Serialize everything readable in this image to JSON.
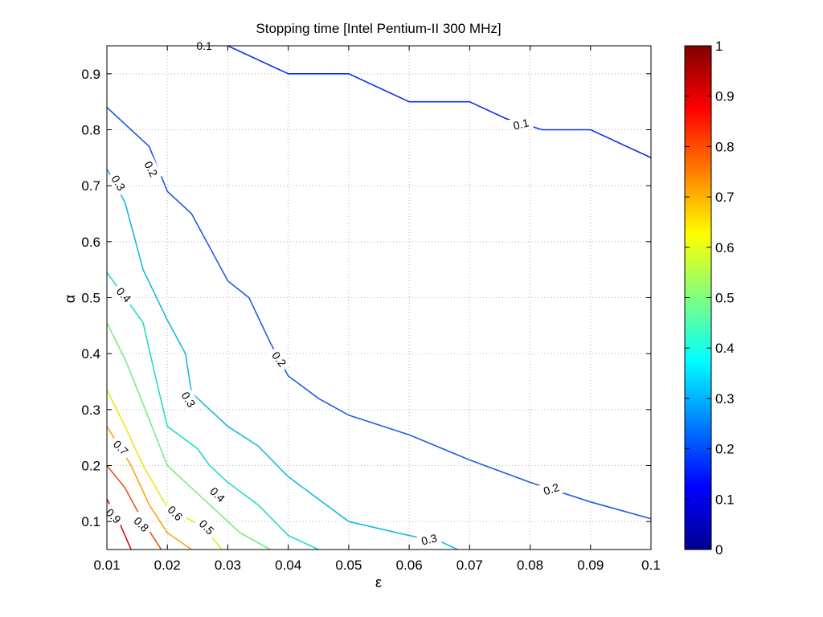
{
  "chart_data": {
    "type": "contour",
    "title": "Stopping time [Intel Pentium-II 300 MHz]",
    "xlabel": "ε",
    "ylabel": "α",
    "xlim": [
      0.01,
      0.1
    ],
    "ylim": [
      0.05,
      0.95
    ],
    "xticks": [
      "0.01",
      "0.02",
      "0.03",
      "0.04",
      "0.05",
      "0.06",
      "0.07",
      "0.08",
      "0.09",
      "0.1"
    ],
    "yticks": [
      "0.1",
      "0.2",
      "0.3",
      "0.4",
      "0.5",
      "0.6",
      "0.7",
      "0.8",
      "0.9"
    ],
    "grid": true,
    "colorbar": {
      "range": [
        0,
        1
      ],
      "ticks": [
        "0",
        "0.1",
        "0.2",
        "0.3",
        "0.4",
        "0.5",
        "0.6",
        "0.7",
        "0.8",
        "0.9",
        "1"
      ]
    },
    "series": [
      {
        "level": 0.1,
        "color": "#0a2ef0",
        "points": [
          [
            0.03,
            0.95
          ],
          [
            0.04,
            0.9
          ],
          [
            0.05,
            0.9
          ],
          [
            0.06,
            0.85
          ],
          [
            0.07,
            0.85
          ],
          [
            0.076,
            0.82
          ],
          [
            0.082,
            0.8
          ],
          [
            0.09,
            0.8
          ],
          [
            0.1,
            0.75
          ]
        ]
      },
      {
        "level": 0.2,
        "color": "#1e5ce8",
        "points": [
          [
            0.01,
            0.84
          ],
          [
            0.014,
            0.8
          ],
          [
            0.017,
            0.77
          ],
          [
            0.02,
            0.69
          ],
          [
            0.024,
            0.65
          ],
          [
            0.027,
            0.59
          ],
          [
            0.03,
            0.53
          ],
          [
            0.0335,
            0.5
          ],
          [
            0.037,
            0.42
          ],
          [
            0.04,
            0.36
          ],
          [
            0.045,
            0.32
          ],
          [
            0.05,
            0.29
          ],
          [
            0.06,
            0.255
          ],
          [
            0.07,
            0.21
          ],
          [
            0.08,
            0.17
          ],
          [
            0.09,
            0.135
          ],
          [
            0.1,
            0.105
          ]
        ]
      },
      {
        "level": 0.3,
        "color": "#18b8e0",
        "points": [
          [
            0.01,
            0.73
          ],
          [
            0.013,
            0.67
          ],
          [
            0.016,
            0.55
          ],
          [
            0.02,
            0.46
          ],
          [
            0.023,
            0.4
          ],
          [
            0.024,
            0.33
          ],
          [
            0.027,
            0.3
          ],
          [
            0.03,
            0.27
          ],
          [
            0.035,
            0.235
          ],
          [
            0.04,
            0.18
          ],
          [
            0.045,
            0.14
          ],
          [
            0.05,
            0.1
          ],
          [
            0.06,
            0.075
          ],
          [
            0.065,
            0.065
          ],
          [
            0.068,
            0.05
          ]
        ]
      },
      {
        "level": 0.4,
        "color": "#22dcc8",
        "points": [
          [
            0.01,
            0.545
          ],
          [
            0.016,
            0.455
          ],
          [
            0.018,
            0.36
          ],
          [
            0.02,
            0.27
          ],
          [
            0.025,
            0.23
          ],
          [
            0.027,
            0.2
          ],
          [
            0.03,
            0.17
          ],
          [
            0.035,
            0.13
          ],
          [
            0.04,
            0.075
          ],
          [
            0.045,
            0.05
          ]
        ]
      },
      {
        "level": 0.5,
        "color": "#77ee80",
        "points": [
          [
            0.01,
            0.455
          ],
          [
            0.013,
            0.39
          ],
          [
            0.016,
            0.31
          ],
          [
            0.02,
            0.2
          ],
          [
            0.025,
            0.15
          ],
          [
            0.028,
            0.12
          ],
          [
            0.032,
            0.08
          ],
          [
            0.037,
            0.05
          ]
        ]
      },
      {
        "level": 0.6,
        "color": "#e8e818",
        "points": [
          [
            0.01,
            0.335
          ],
          [
            0.013,
            0.27
          ],
          [
            0.016,
            0.2
          ],
          [
            0.02,
            0.125
          ],
          [
            0.026,
            0.09
          ],
          [
            0.029,
            0.05
          ]
        ]
      },
      {
        "level": 0.7,
        "color": "#ffa010",
        "points": [
          [
            0.01,
            0.27
          ],
          [
            0.014,
            0.2
          ],
          [
            0.017,
            0.13
          ],
          [
            0.02,
            0.08
          ],
          [
            0.024,
            0.05
          ]
        ]
      },
      {
        "level": 0.8,
        "color": "#f05010",
        "points": [
          [
            0.01,
            0.2
          ],
          [
            0.013,
            0.16
          ],
          [
            0.016,
            0.1
          ],
          [
            0.019,
            0.05
          ]
        ]
      },
      {
        "level": 0.9,
        "color": "#d41010",
        "points": [
          [
            0.01,
            0.14
          ],
          [
            0.012,
            0.1
          ],
          [
            0.014,
            0.05
          ]
        ]
      }
    ],
    "labels": [
      {
        "text": "0.1",
        "x": 0.0261,
        "y": 0.95,
        "angle": 0
      },
      {
        "text": "0.1",
        "x": 0.0785,
        "y": 0.81,
        "angle": -14
      },
      {
        "text": "0.2",
        "x": 0.0173,
        "y": 0.73,
        "angle": 62
      },
      {
        "text": "0.2",
        "x": 0.0385,
        "y": 0.39,
        "angle": 52
      },
      {
        "text": "0.2",
        "x": 0.0835,
        "y": 0.158,
        "angle": -18
      },
      {
        "text": "0.3",
        "x": 0.0119,
        "y": 0.705,
        "angle": 58
      },
      {
        "text": "0.3",
        "x": 0.0235,
        "y": 0.318,
        "angle": 58
      },
      {
        "text": "0.3",
        "x": 0.0633,
        "y": 0.068,
        "angle": -14
      },
      {
        "text": "0.4",
        "x": 0.0128,
        "y": 0.505,
        "angle": 48
      },
      {
        "text": "0.4",
        "x": 0.0283,
        "y": 0.148,
        "angle": 45
      },
      {
        "text": "0.5",
        "x": 0.0265,
        "y": 0.09,
        "angle": 45
      },
      {
        "text": "0.6",
        "x": 0.0213,
        "y": 0.115,
        "angle": 45
      },
      {
        "text": "0.7",
        "x": 0.0123,
        "y": 0.232,
        "angle": 45
      },
      {
        "text": "0.8",
        "x": 0.0157,
        "y": 0.095,
        "angle": 45
      },
      {
        "text": "0.9",
        "x": 0.0111,
        "y": 0.11,
        "angle": 45
      }
    ]
  }
}
